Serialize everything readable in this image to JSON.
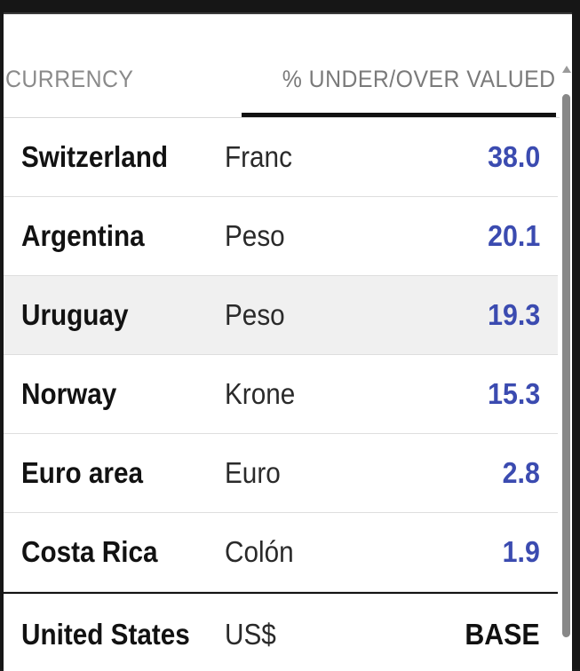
{
  "table": {
    "headers": {
      "currency": "CURRENCY",
      "valued": "% UNDER/OVER VALUED"
    },
    "rows": [
      {
        "country": "Switzerland",
        "currency": "Franc",
        "value": "38.0"
      },
      {
        "country": "Argentina",
        "currency": "Peso",
        "value": "20.1"
      },
      {
        "country": "Uruguay",
        "currency": "Peso",
        "value": "19.3"
      },
      {
        "country": "Norway",
        "currency": "Krone",
        "value": "15.3"
      },
      {
        "country": "Euro area",
        "currency": "Euro",
        "value": "2.8"
      },
      {
        "country": "Costa Rica",
        "currency": "Colón",
        "value": "1.9"
      },
      {
        "country": "United States",
        "currency": "US$",
        "value": "BASE"
      }
    ],
    "highlighted_row": "Uruguay",
    "value_color": "#3b4bb0",
    "base_value_color": "#111111"
  },
  "icons": {
    "scroll_up": "scroll-up-arrow-icon"
  }
}
